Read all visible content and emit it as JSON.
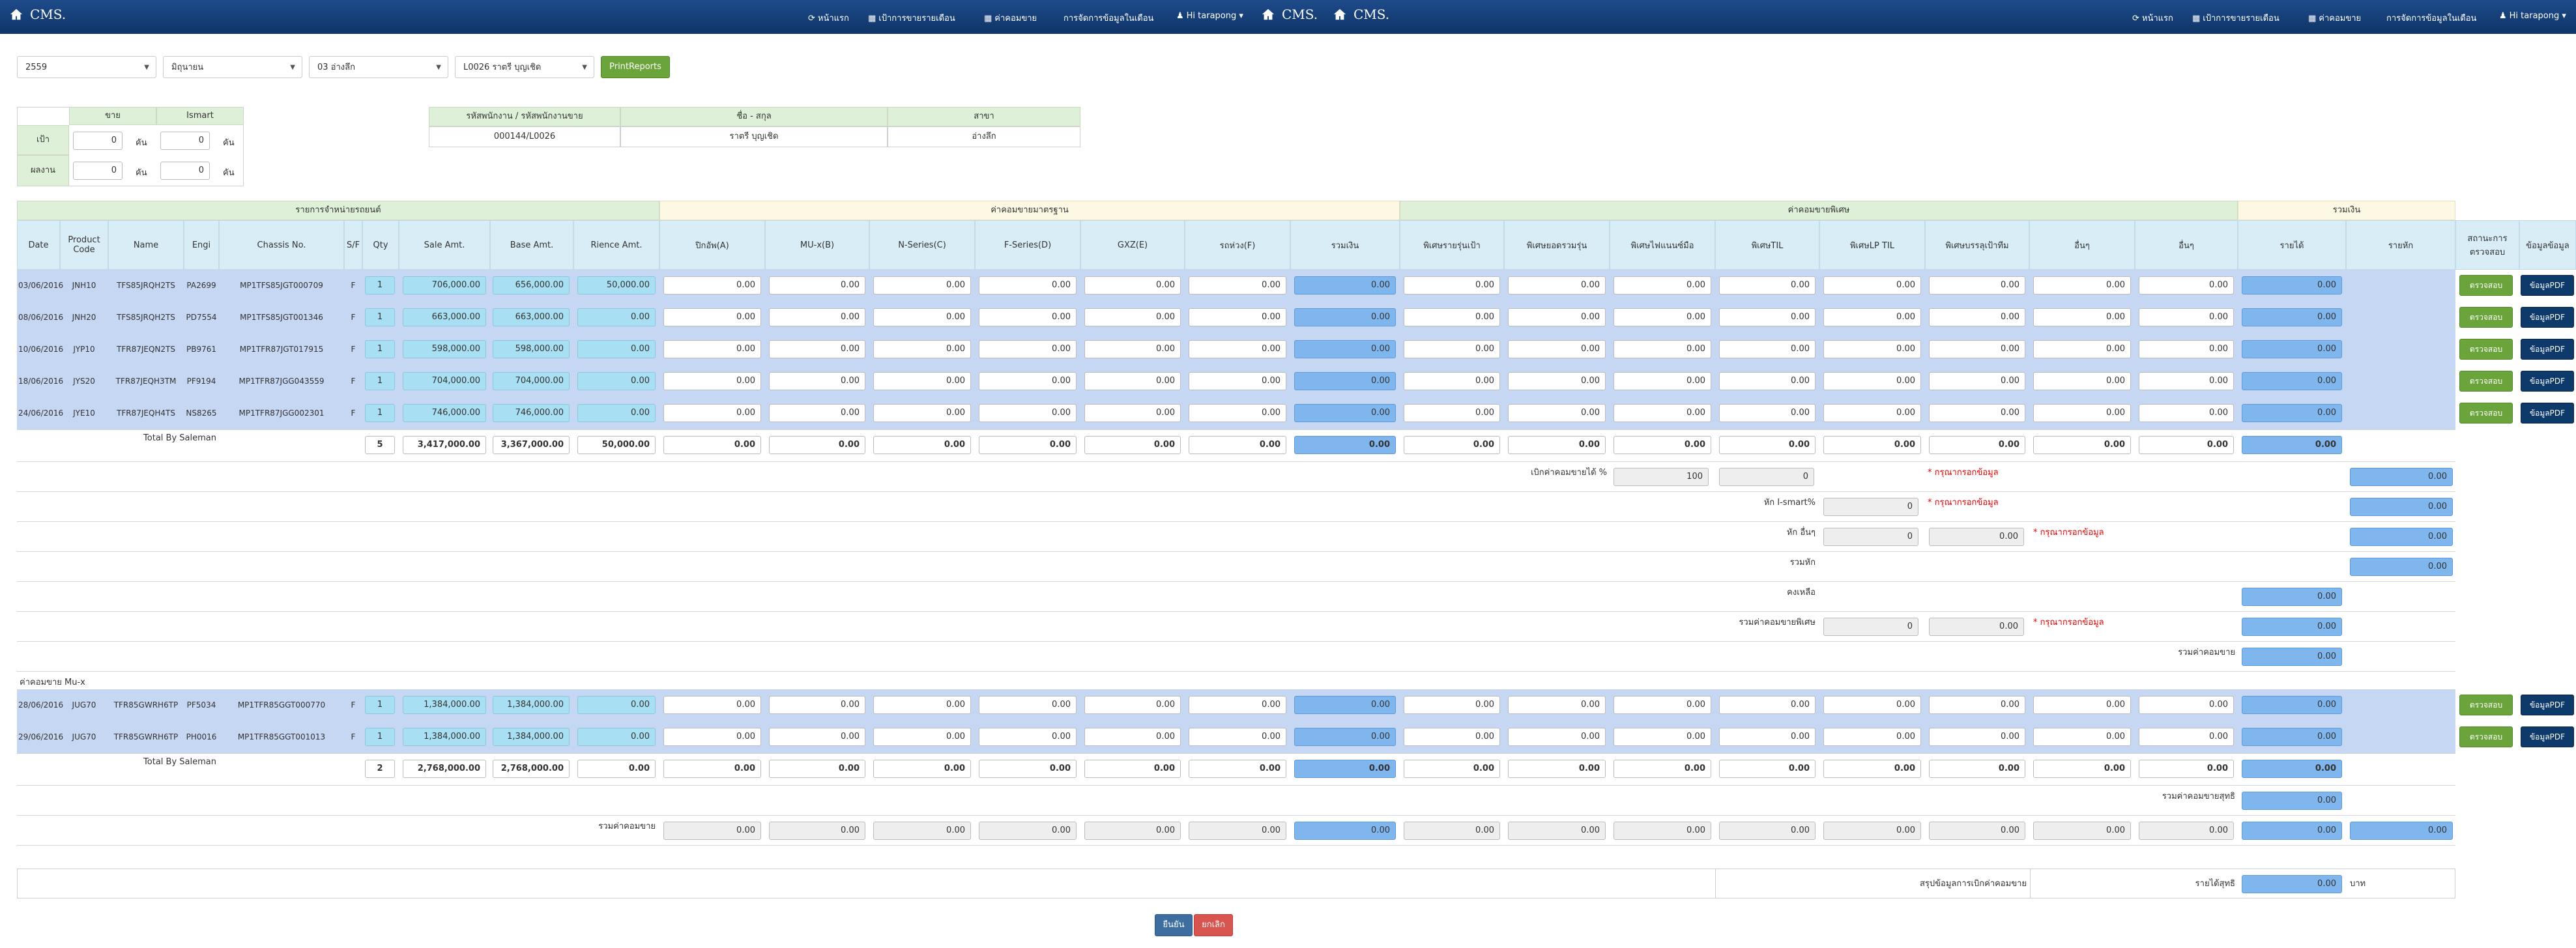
{
  "navbar": {
    "brand": "CMS.",
    "menu": [
      "หน้าแรก",
      "เป้าการขายรายเดือน",
      "ค่าคอมขาย",
      "การจัดการข้อมูลในเดือน",
      "Hi tarapong"
    ],
    "menu_left": [
      "หน้าแรก",
      "เป้าการขายรายเดือน",
      "ค่าคอมขาย",
      "การจัดการข้อมูลในเดือน",
      "Hi tarapong"
    ]
  },
  "filters": {
    "year": "2559",
    "month": "มิถุนายน",
    "branch": "03 อ่างลึก",
    "employee": "L0026 ราตรี บุญเชิด",
    "print_label": "PrintReports"
  },
  "summary": {
    "col_sale": "ขาย",
    "col_ismart": "Ismart",
    "row_target": "เป้า",
    "row_result": "ผลงาน",
    "unit": "คัน",
    "target_sale": "0",
    "target_ismart": "0",
    "result_sale": "0",
    "result_ismart": "0"
  },
  "employee_info": {
    "h_code": "รหัสพนักงาน / รหัสพนักงานขาย",
    "h_name": "ชื่อ - สกุล",
    "h_branch": "สาขา",
    "code": "000144/L0026",
    "name": "ราตรี บุญเชิด",
    "branch": "อ่างลึก"
  },
  "groups": {
    "sales": "รายการจำหน่ายรถยนต์",
    "basic": "ค่าคอมขายมาตรฐาน",
    "special": "ค่าคอมขายพิเศษ",
    "total": "รวมเงิน"
  },
  "columns": [
    "Date",
    "Product Code",
    "Name",
    "Engi",
    "Chassis No.",
    "S/F",
    "Qty",
    "Sale Amt.",
    "Base Amt.",
    "Rience Amt.",
    "ปิกอัพ(A)",
    "MU-x(B)",
    "N-Series(C)",
    "F-Series(D)",
    "GXZ(E)",
    "รถห่วง(F)",
    "รวมเงิน",
    "พิเศษรายรุ่นเป้า",
    "พิเศษยอดรวมรุ่น",
    "พิเศษไฟแนนซ์มือ",
    "พิเศษTIL",
    "พิเศษLP TIL",
    "พิเศษบรรลุเป้าทีม",
    "อื่นๆ",
    "อื่นๆ",
    "รายได้",
    "รายหัก",
    "สถานะการตรวจสอบ",
    "ข้อมูลข้อมูล"
  ],
  "rows": [
    {
      "date": "03/06/2016",
      "code": "JNH10",
      "name": "TFS85JRQH2TS",
      "engi": "PA2699",
      "chassis": "MP1TFS85JGT000709",
      "sf": "F",
      "qty": "1",
      "sale": "706,000.00",
      "base": "656,000.00",
      "rience": "50,000.00"
    },
    {
      "date": "08/06/2016",
      "code": "JNH20",
      "name": "TFS85JRQH2TS",
      "engi": "PD7554",
      "chassis": "MP1TFS85JGT001346",
      "sf": "F",
      "qty": "1",
      "sale": "663,000.00",
      "base": "663,000.00",
      "rience": "0.00"
    },
    {
      "date": "10/06/2016",
      "code": "JYP10",
      "name": "TFR87JEQN2TS",
      "engi": "PB9761",
      "chassis": "MP1TFR87JGT017915",
      "sf": "F",
      "qty": "1",
      "sale": "598,000.00",
      "base": "598,000.00",
      "rience": "0.00"
    },
    {
      "date": "18/06/2016",
      "code": "JYS20",
      "name": "TFR87JEQH3TM",
      "engi": "PF9194",
      "chassis": "MP1TFR87JGG043559",
      "sf": "F",
      "qty": "1",
      "sale": "704,000.00",
      "base": "704,000.00",
      "rience": "0.00"
    },
    {
      "date": "24/06/2016",
      "code": "JYE10",
      "name": "TFR87JEQH4TS",
      "engi": "NS8265",
      "chassis": "MP1TFR87JGG002301",
      "sf": "F",
      "qty": "1",
      "sale": "746,000.00",
      "base": "746,000.00",
      "rience": "0.00"
    }
  ],
  "rows2": [
    {
      "date": "28/06/2016",
      "code": "JUG70",
      "name": "TFR85GWRH6TP",
      "engi": "PF5034",
      "chassis": "MP1TFR85GGT000770",
      "sf": "F",
      "qty": "1",
      "sale": "1,384,000.00",
      "base": "1,384,000.00",
      "rience": "0.00"
    },
    {
      "date": "29/06/2016",
      "code": "JUG70",
      "name": "TFR85GWRH6TP",
      "engi": "PH0016",
      "chassis": "MP1TFR85GGT001013",
      "sf": "F",
      "qty": "1",
      "sale": "1,384,000.00",
      "base": "1,384,000.00",
      "rience": "0.00"
    }
  ],
  "zero": "0.00",
  "zero_int": "0",
  "total1": {
    "label": "Total By Saleman",
    "qty": "5",
    "sale": "3,417,000.00",
    "base": "3,367,000.00",
    "rience": "50,000.00"
  },
  "total2": {
    "label": "Total By Saleman",
    "qty": "2",
    "sale": "2,768,000.00",
    "base": "2,768,000.00",
    "rience": "0.00"
  },
  "check_label": "ตรวจสอบ",
  "data_label": "ข้อมูลPDF",
  "adjust": {
    "pct_label": "เบิกค่าคอมขายได้ %",
    "pct_value": "100",
    "ismart_label": "หัก I-smart%",
    "other_label": "หัก อื่นๆ",
    "total_ded_label": "รวมหัก",
    "remain_label": "คงเหลือ",
    "special_sum_label": "รวมค่าคอมขายพิเศษ",
    "com_total_label": "รวมค่าคอมขาย",
    "warn": "* กรุณากรอกข้อมูล",
    "section_label": "ค่าคอมขาย Mu-x",
    "net_label": "รวมค่าคอมขายสุทธิ",
    "grand_label": "รวมค่าคอมขาย",
    "summary_label": "สรุปข้อมูลการเบิกค่าคอมขาย",
    "net_income_label": "รายได้สุทธิ",
    "baht": "บาท"
  },
  "footer": {
    "confirm": "ยืนยัน",
    "cancel": "ยกเลิก"
  },
  "colors": {
    "navbar": "#0f3467",
    "green": "#6aa43a",
    "navy": "#0d3a6a",
    "cyan": "#a8dff2",
    "blue": "#7fb6ee",
    "red": "#d9534f"
  }
}
